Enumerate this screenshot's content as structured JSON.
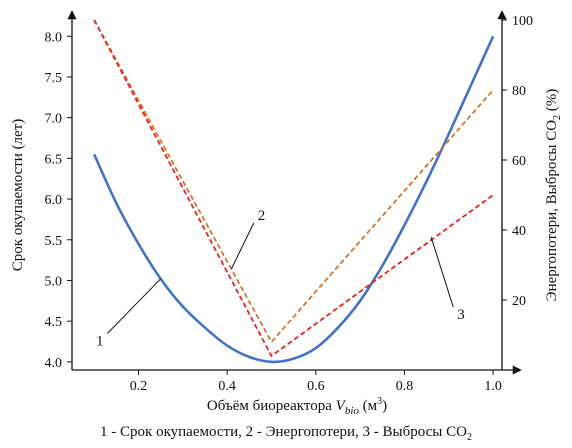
{
  "chart_data": {
    "type": "line",
    "x_label_main": "Объём биореактора ",
    "x_label_var": "V",
    "x_label_sub": "bio",
    "x_label_unit": " (м",
    "x_label_unit_exp": "3",
    "x_label_close": ")",
    "y_left_label": "Срок окупаемости (лет)",
    "y_right_label_main": "Энергопотери, Выбросы CO",
    "y_right_label_sub": "2",
    "y_right_label_unit": " (%)",
    "caption_main": "1 - Срок окупаемости, 2 - Энергопотери, 3 - Выбросы CO",
    "caption_sub": "2",
    "xlim": [
      0.05,
      1.02
    ],
    "ylim_left": [
      3.9,
      8.2
    ],
    "ylim_right": [
      0,
      100
    ],
    "x_ticks": [
      {
        "value": 0.2,
        "label": "0.2"
      },
      {
        "value": 0.4,
        "label": "0.4"
      },
      {
        "value": 0.6,
        "label": "0.6"
      },
      {
        "value": 0.8,
        "label": "0.8"
      },
      {
        "value": 1.0,
        "label": "1.0"
      }
    ],
    "y_left_ticks": [
      {
        "value": 4.0,
        "label": "4.0"
      },
      {
        "value": 4.5,
        "label": "4.5"
      },
      {
        "value": 5.0,
        "label": "5.0"
      },
      {
        "value": 5.5,
        "label": "5.5"
      },
      {
        "value": 6.0,
        "label": "6.0"
      },
      {
        "value": 6.5,
        "label": "6.5"
      },
      {
        "value": 7.0,
        "label": "7.0"
      },
      {
        "value": 7.5,
        "label": "7.5"
      },
      {
        "value": 8.0,
        "label": "8.0"
      }
    ],
    "y_right_ticks": [
      {
        "value": 20,
        "label": "20"
      },
      {
        "value": 40,
        "label": "40"
      },
      {
        "value": 60,
        "label": "60"
      },
      {
        "value": 80,
        "label": "80"
      },
      {
        "value": 100,
        "label": "100"
      }
    ],
    "series": [
      {
        "id": "1",
        "axis": "left",
        "color": "#4472C4",
        "style": "solid",
        "x": [
          0.1,
          0.15,
          0.2,
          0.25,
          0.3,
          0.35,
          0.4,
          0.45,
          0.5,
          0.55,
          0.6,
          0.65,
          0.7,
          0.75,
          0.8,
          0.85,
          0.9,
          0.95,
          1.0
        ],
        "y": [
          6.55,
          5.95,
          5.45,
          5.02,
          4.68,
          4.42,
          4.2,
          4.06,
          4.0,
          4.04,
          4.17,
          4.42,
          4.75,
          5.18,
          5.68,
          6.22,
          6.8,
          7.4,
          8.0
        ]
      },
      {
        "id": "2",
        "axis": "right",
        "color": "#D4722C",
        "style": "dashed",
        "x": [
          0.1,
          0.5,
          1.0
        ],
        "y": [
          100,
          8,
          80
        ]
      },
      {
        "id": "3",
        "axis": "right",
        "color": "#E8221E",
        "style": "dashed",
        "x": [
          0.1,
          0.5,
          1.0
        ],
        "y": [
          100,
          4,
          50
        ]
      }
    ],
    "annotations": [
      {
        "label": "1",
        "series": "1",
        "point_x": 0.25,
        "point_y": 5.02,
        "text_x": 0.13,
        "text_y": 4.35
      },
      {
        "label": "2",
        "series": "2",
        "point_x": 0.41,
        "point_y": 29,
        "text_x": 0.46,
        "text_y": 42
      },
      {
        "label": "3",
        "series": "3",
        "point_x": 0.86,
        "point_y": 38,
        "text_x": 0.91,
        "text_y": 18
      }
    ]
  }
}
